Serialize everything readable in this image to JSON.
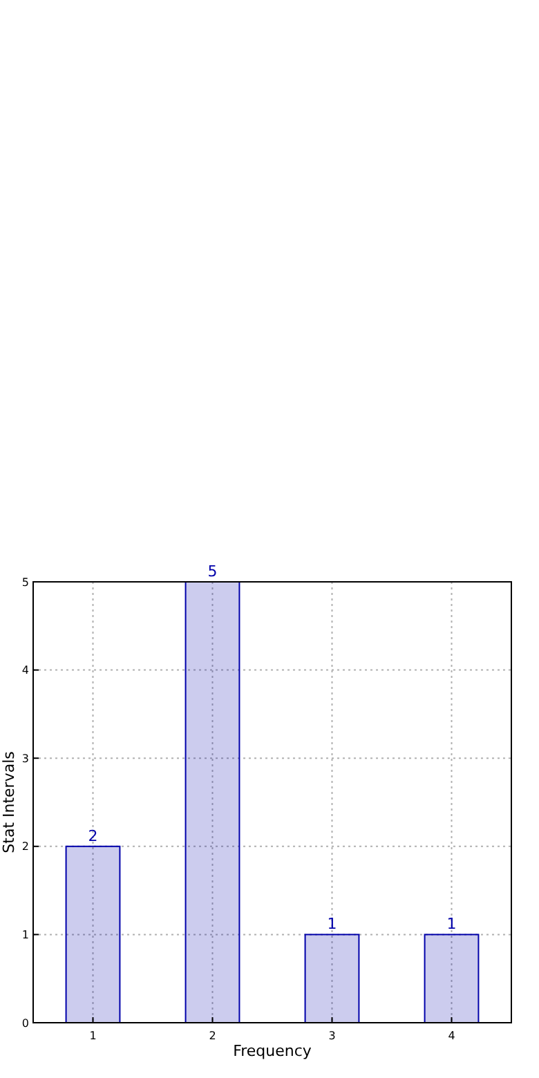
{
  "chart_data": {
    "type": "bar",
    "xlabel": "Frequency",
    "ylabel": "Stat Intervals",
    "categories": [
      "1",
      "2",
      "3",
      "4"
    ],
    "series": [
      {
        "color": "#0000aa",
        "values": [
          2,
          5,
          1,
          1
        ]
      }
    ],
    "ylim": [
      0,
      5
    ],
    "yticks": [
      0,
      1,
      2,
      3,
      4,
      5
    ],
    "grid": true,
    "data_labels": true
  }
}
